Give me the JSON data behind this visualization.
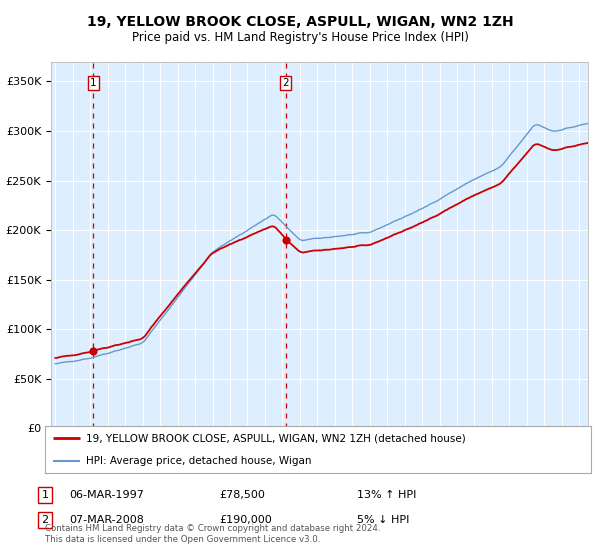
{
  "title": "19, YELLOW BROOK CLOSE, ASPULL, WIGAN, WN2 1ZH",
  "subtitle": "Price paid vs. HM Land Registry's House Price Index (HPI)",
  "ylabel_ticks": [
    "£0",
    "£50K",
    "£100K",
    "£150K",
    "£200K",
    "£250K",
    "£300K",
    "£350K"
  ],
  "ytick_vals": [
    0,
    50000,
    100000,
    150000,
    200000,
    250000,
    300000,
    350000
  ],
  "ylim": [
    0,
    370000
  ],
  "xlim_start": 1994.75,
  "xlim_end": 2025.5,
  "sale1_date": 1997.18,
  "sale1_price": 78500,
  "sale1_label": "1",
  "sale1_display": "06-MAR-1997",
  "sale1_amount": "£78,500",
  "sale1_hpi": "13% ↑ HPI",
  "sale2_date": 2008.18,
  "sale2_price": 190000,
  "sale2_label": "2",
  "sale2_display": "07-MAR-2008",
  "sale2_amount": "£190,000",
  "sale2_hpi": "5% ↓ HPI",
  "line_color_red": "#cc0000",
  "line_color_blue": "#6699cc",
  "dashed_color": "#cc0000",
  "plot_bg_color": "#ddeeff",
  "legend_line1": "19, YELLOW BROOK CLOSE, ASPULL, WIGAN, WN2 1ZH (detached house)",
  "legend_line2": "HPI: Average price, detached house, Wigan",
  "footer": "Contains HM Land Registry data © Crown copyright and database right 2024.\nThis data is licensed under the Open Government Licence v3.0."
}
